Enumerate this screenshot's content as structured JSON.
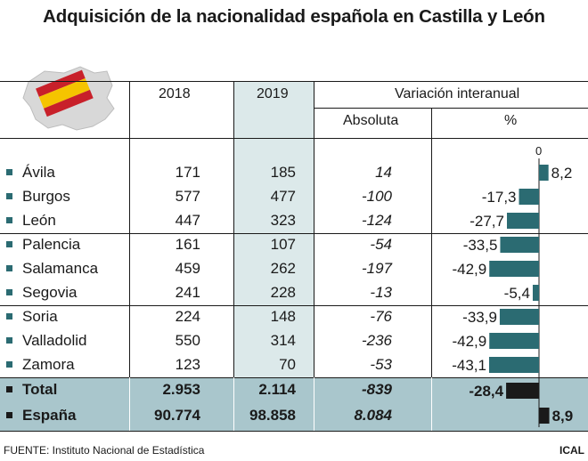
{
  "title": "Adquisición de la nacionalidad española en Castilla y León",
  "header": {
    "col_2018": "2018",
    "col_2019": "2019",
    "variacion": "Variación interanual",
    "absoluta": "Absoluta",
    "percent": "%",
    "zero_label": "0"
  },
  "rows": [
    {
      "name": "Ávila",
      "y2018": "171",
      "y2019": "185",
      "abs": "14",
      "pct_label": "8,2"
    },
    {
      "name": "Burgos",
      "y2018": "577",
      "y2019": "477",
      "abs": "-100",
      "pct_label": "-17,3"
    },
    {
      "name": "León",
      "y2018": "447",
      "y2019": "323",
      "abs": "-124",
      "pct_label": "-27,7"
    },
    {
      "name": "Palencia",
      "y2018": "161",
      "y2019": "107",
      "abs": "-54",
      "pct_label": "-33,5"
    },
    {
      "name": "Salamanca",
      "y2018": "459",
      "y2019": "262",
      "abs": "-197",
      "pct_label": "-42,9"
    },
    {
      "name": "Segovia",
      "y2018": "241",
      "y2019": "228",
      "abs": "-13",
      "pct_label": "-5,4"
    },
    {
      "name": "Soria",
      "y2018": "224",
      "y2019": "148",
      "abs": "-76",
      "pct_label": "-33,9"
    },
    {
      "name": "Valladolid",
      "y2018": "550",
      "y2019": "314",
      "abs": "-236",
      "pct_label": "-42,9"
    },
    {
      "name": "Zamora",
      "y2018": "123",
      "y2019": "70",
      "abs": "-53",
      "pct_label": "-43,1"
    }
  ],
  "totals": [
    {
      "name": "Total",
      "y2018": "2.953",
      "y2019": "2.114",
      "abs": "-839",
      "pct_label": "-28,4"
    },
    {
      "name": "España",
      "y2018": "90.774",
      "y2019": "98.858",
      "abs": "8.084",
      "pct_label": "8,9"
    }
  ],
  "footer": {
    "source": "FUENTE: Instituto Nacional de Estadística",
    "brand": "ICAL"
  },
  "colors": {
    "bar": "#2b6b72",
    "bar_total": "#1a1a1a",
    "highlight_column": "#dce9ea",
    "highlight_rows": "#a9c6cc",
    "flag_red": "#c8202a",
    "flag_yellow": "#f5c400"
  },
  "chart_data": {
    "type": "bar",
    "orientation": "horizontal",
    "categories": [
      "Ávila",
      "Burgos",
      "León",
      "Palencia",
      "Salamanca",
      "Segovia",
      "Soria",
      "Valladolid",
      "Zamora",
      "Total",
      "España"
    ],
    "series": [
      {
        "values": [
          8.2,
          -17.3,
          -27.7,
          -33.5,
          -42.9,
          -5.4,
          -33.9,
          -42.9,
          -43.1,
          -28.4,
          8.9
        ]
      }
    ],
    "xlim": [
      -43.1,
      8.9
    ]
  }
}
